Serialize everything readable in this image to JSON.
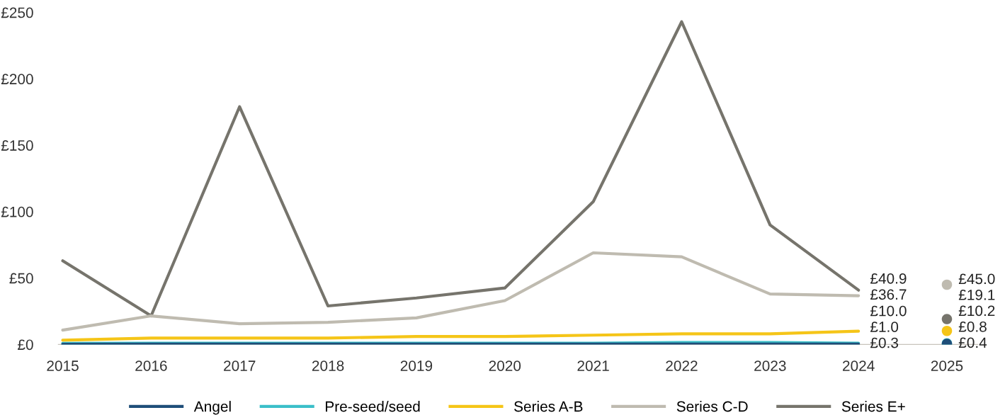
{
  "chart_data": {
    "type": "line",
    "categories": [
      "2015",
      "2016",
      "2017",
      "2018",
      "2019",
      "2020",
      "2021",
      "2022",
      "2023",
      "2024",
      "2025"
    ],
    "ylim": [
      0,
      250
    ],
    "yticks": [
      {
        "value": 0,
        "label": "£0"
      },
      {
        "value": 50,
        "label": "£50"
      },
      {
        "value": 100,
        "label": "£100"
      },
      {
        "value": 150,
        "label": "£150"
      },
      {
        "value": 200,
        "label": "£200"
      },
      {
        "value": 250,
        "label": "£250"
      }
    ],
    "grid": false,
    "legend": "bottom",
    "marker": "none",
    "line_style": "solid",
    "series": [
      {
        "name": "Angel",
        "color": "#1f4e79",
        "values": [
          0.2,
          0.3,
          0.3,
          0.3,
          0.3,
          0.3,
          0.3,
          0.3,
          0.3,
          0.3,
          null
        ],
        "value_labels": [
          null,
          null,
          null,
          null,
          null,
          null,
          null,
          null,
          null,
          "£0.3",
          null
        ]
      },
      {
        "name": "Pre-seed/seed",
        "color": "#3bbfc9",
        "values": [
          0.8,
          1.0,
          1.0,
          1.0,
          1.0,
          1.0,
          1.0,
          1.5,
          1.5,
          1.0,
          null
        ],
        "value_labels": [
          null,
          null,
          null,
          null,
          null,
          null,
          null,
          null,
          null,
          "£1.0",
          null
        ]
      },
      {
        "name": "Series A-B",
        "color": "#f5c518",
        "values": [
          3.2,
          4.8,
          4.8,
          4.8,
          6,
          6,
          7,
          8,
          8,
          10.0,
          null
        ],
        "value_labels": [
          null,
          null,
          null,
          null,
          null,
          null,
          null,
          null,
          null,
          "£10.0",
          null
        ]
      },
      {
        "name": "Series C-D",
        "color": "#bfbbb0",
        "values": [
          10.8,
          21.5,
          15.6,
          16.7,
          20,
          33,
          69,
          66,
          38,
          36.7,
          null
        ],
        "value_labels": [
          null,
          null,
          null,
          null,
          null,
          null,
          null,
          null,
          null,
          "£36.7",
          null
        ]
      },
      {
        "name": "Series E+",
        "color": "#76746c",
        "values": [
          63,
          21.5,
          179,
          29,
          35,
          42.5,
          107.5,
          243,
          90,
          40.9,
          null
        ],
        "value_labels": [
          null,
          null,
          null,
          null,
          null,
          null,
          null,
          null,
          null,
          "£40.9",
          null
        ]
      },
      {
        "type": "scatter",
        "marker": "circle",
        "color": "#bfbbb0",
        "values": [
          null,
          null,
          null,
          null,
          null,
          null,
          null,
          null,
          null,
          null,
          45.0
        ],
        "value_labels": [
          null,
          null,
          null,
          null,
          null,
          null,
          null,
          null,
          null,
          null,
          "£45.0"
        ]
      },
      {
        "type": "scatter",
        "marker": "circle",
        "color": "#76746c",
        "values": [
          null,
          null,
          null,
          null,
          null,
          null,
          null,
          null,
          null,
          null,
          19.1
        ],
        "value_labels": [
          null,
          null,
          null,
          null,
          null,
          null,
          null,
          null,
          null,
          null,
          "£19.1"
        ]
      },
      {
        "type": "scatter",
        "marker": "circle",
        "color": "#f5c518",
        "values": [
          null,
          null,
          null,
          null,
          null,
          null,
          null,
          null,
          null,
          null,
          10.2
        ],
        "value_labels": [
          null,
          null,
          null,
          null,
          null,
          null,
          null,
          null,
          null,
          null,
          "£10.2"
        ]
      },
      {
        "type": "scatter",
        "marker": "circle",
        "color": "#3bbfc9",
        "values": [
          null,
          null,
          null,
          null,
          null,
          null,
          null,
          null,
          null,
          null,
          0.8
        ],
        "value_labels": [
          null,
          null,
          null,
          null,
          null,
          null,
          null,
          null,
          null,
          null,
          "£0.8"
        ]
      },
      {
        "type": "scatter",
        "marker": "circle",
        "color": "#1f4e79",
        "values": [
          null,
          null,
          null,
          null,
          null,
          null,
          null,
          null,
          null,
          null,
          0.4
        ],
        "value_labels": [
          null,
          null,
          null,
          null,
          null,
          null,
          null,
          null,
          null,
          null,
          "£0.4"
        ]
      }
    ]
  }
}
